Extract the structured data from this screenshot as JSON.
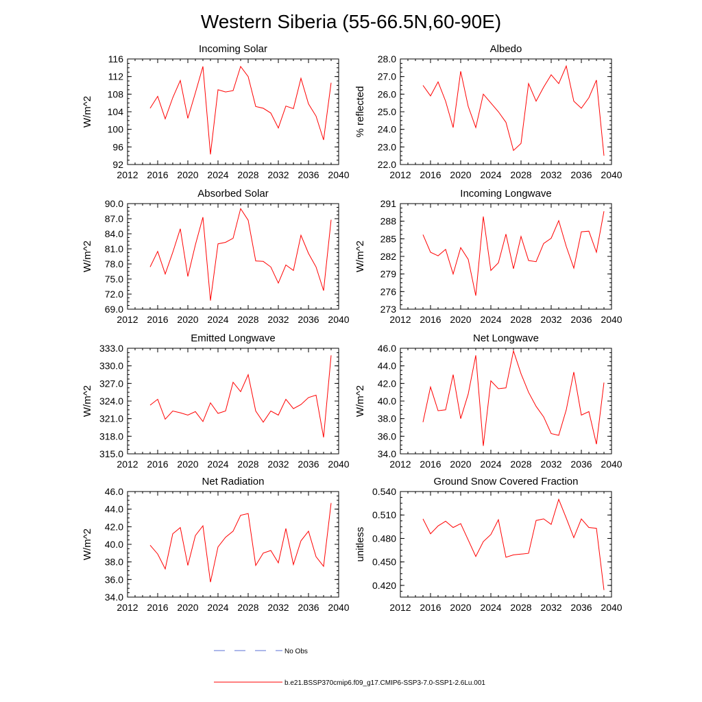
{
  "figure": {
    "title": "Western Siberia (55-66.5N,60-90E)",
    "legend": [
      {
        "label": "No Obs",
        "color": "#5a6fd6",
        "style": "dashed"
      },
      {
        "label": "b.e21.BSSP370cmip6.f09_g17.CMIP6-SSP3-7.0-SSP1-2.6Lu.001",
        "color": "#ff0000",
        "style": "solid"
      }
    ]
  },
  "chart_data": [
    {
      "type": "line",
      "title": "Incoming Solar",
      "xlabel": "",
      "ylabel": "W/m^2",
      "xlim": [
        2012,
        2040
      ],
      "xticks": [
        "2012",
        "2016",
        "2020",
        "2024",
        "2028",
        "2032",
        "2036",
        "2040"
      ],
      "ylim": [
        92,
        116
      ],
      "yticks": [
        "92",
        "96",
        "100",
        "104",
        "108",
        "112",
        "116"
      ],
      "x": [
        2015,
        2016,
        2017,
        2018,
        2019,
        2020,
        2021,
        2022,
        2023,
        2024,
        2025,
        2026,
        2027,
        2028,
        2029,
        2030,
        2031,
        2032,
        2033,
        2034,
        2035,
        2036,
        2037,
        2038,
        2039
      ],
      "series": [
        {
          "color": "#ff0000",
          "values": [
            104.8,
            107.5,
            102.4,
            107.2,
            111.1,
            102.5,
            108.3,
            114.3,
            94.3,
            109.0,
            108.5,
            108.8,
            114.3,
            112.0,
            105.2,
            104.8,
            103.7,
            100.3,
            105.3,
            104.7,
            111.6,
            105.8,
            103.0,
            97.6,
            110.6
          ]
        }
      ]
    },
    {
      "type": "line",
      "title": "Albedo",
      "xlabel": "",
      "ylabel": "% reflected",
      "xlim": [
        2012,
        2040
      ],
      "xticks": [
        "2012",
        "2016",
        "2020",
        "2024",
        "2028",
        "2032",
        "2036",
        "2040"
      ],
      "ylim": [
        22.0,
        28.0
      ],
      "yticks": [
        "22.0",
        "23.0",
        "24.0",
        "25.0",
        "26.0",
        "27.0",
        "28.0"
      ],
      "x": [
        2015,
        2016,
        2017,
        2018,
        2019,
        2020,
        2021,
        2022,
        2023,
        2024,
        2025,
        2026,
        2027,
        2028,
        2029,
        2030,
        2031,
        2032,
        2033,
        2034,
        2035,
        2036,
        2037,
        2038,
        2039
      ],
      "series": [
        {
          "color": "#ff0000",
          "values": [
            26.5,
            25.9,
            26.7,
            25.6,
            24.1,
            27.3,
            25.3,
            24.1,
            26.0,
            25.5,
            25.0,
            24.4,
            22.8,
            23.2,
            26.6,
            25.6,
            26.4,
            27.1,
            26.6,
            27.6,
            25.6,
            25.2,
            25.8,
            26.8,
            22.5
          ]
        }
      ]
    },
    {
      "type": "line",
      "title": "Absorbed Solar",
      "xlabel": "",
      "ylabel": "W/m^2",
      "xlim": [
        2012,
        2040
      ],
      "xticks": [
        "2012",
        "2016",
        "2020",
        "2024",
        "2028",
        "2032",
        "2036",
        "2040"
      ],
      "ylim": [
        69.0,
        90.0
      ],
      "yticks": [
        "69.0",
        "72.0",
        "75.0",
        "78.0",
        "81.0",
        "84.0",
        "87.0",
        "90.0"
      ],
      "x": [
        2015,
        2016,
        2017,
        2018,
        2019,
        2020,
        2021,
        2022,
        2023,
        2024,
        2025,
        2026,
        2027,
        2028,
        2029,
        2030,
        2031,
        2032,
        2033,
        2034,
        2035,
        2036,
        2037,
        2038,
        2039
      ],
      "series": [
        {
          "color": "#ff0000",
          "values": [
            77.4,
            80.5,
            76.0,
            80.3,
            85.0,
            75.5,
            81.8,
            87.3,
            70.7,
            82.0,
            82.3,
            83.1,
            89.0,
            86.7,
            78.6,
            78.5,
            77.4,
            74.2,
            77.8,
            76.7,
            83.7,
            80.1,
            77.4,
            72.7,
            86.8
          ]
        }
      ]
    },
    {
      "type": "line",
      "title": "Incoming Longwave",
      "xlabel": "",
      "ylabel": "W/m^2",
      "xlim": [
        2012,
        2040
      ],
      "xticks": [
        "2012",
        "2016",
        "2020",
        "2024",
        "2028",
        "2032",
        "2036",
        "2040"
      ],
      "ylim": [
        273,
        291
      ],
      "yticks": [
        "273",
        "276",
        "279",
        "282",
        "285",
        "288",
        "291"
      ],
      "x": [
        2015,
        2016,
        2017,
        2018,
        2019,
        2020,
        2021,
        2022,
        2023,
        2024,
        2025,
        2026,
        2027,
        2028,
        2029,
        2030,
        2031,
        2032,
        2033,
        2034,
        2035,
        2036,
        2037,
        2038,
        2039
      ],
      "series": [
        {
          "color": "#ff0000",
          "values": [
            285.7,
            282.7,
            282.1,
            283.2,
            279.0,
            283.5,
            281.5,
            275.3,
            288.8,
            279.6,
            280.9,
            285.8,
            279.9,
            285.4,
            281.3,
            281.1,
            284.2,
            285.1,
            288.1,
            283.7,
            280.0,
            286.2,
            286.3,
            282.7,
            289.7
          ]
        }
      ]
    },
    {
      "type": "line",
      "title": "Emitted Longwave",
      "xlabel": "",
      "ylabel": "W/m^2",
      "xlim": [
        2012,
        2040
      ],
      "xticks": [
        "2012",
        "2016",
        "2020",
        "2024",
        "2028",
        "2032",
        "2036",
        "2040"
      ],
      "ylim": [
        315.0,
        333.0
      ],
      "yticks": [
        "315.0",
        "318.0",
        "321.0",
        "324.0",
        "327.0",
        "330.0",
        "333.0"
      ],
      "x": [
        2015,
        2016,
        2017,
        2018,
        2019,
        2020,
        2021,
        2022,
        2023,
        2024,
        2025,
        2026,
        2027,
        2028,
        2029,
        2030,
        2031,
        2032,
        2033,
        2034,
        2035,
        2036,
        2037,
        2038,
        2039
      ],
      "series": [
        {
          "color": "#ff0000",
          "values": [
            323.3,
            324.3,
            320.9,
            322.3,
            322.0,
            321.6,
            322.2,
            320.5,
            323.7,
            321.9,
            322.3,
            327.2,
            325.6,
            328.5,
            322.3,
            320.4,
            322.3,
            321.6,
            324.3,
            322.7,
            323.4,
            324.6,
            325.0,
            317.8,
            331.8
          ]
        }
      ]
    },
    {
      "type": "line",
      "title": "Net Longwave",
      "xlabel": "",
      "ylabel": "W/m^2",
      "xlim": [
        2012,
        2040
      ],
      "xticks": [
        "2012",
        "2016",
        "2020",
        "2024",
        "2028",
        "2032",
        "2036",
        "2040"
      ],
      "ylim": [
        34.0,
        46.0
      ],
      "yticks": [
        "34.0",
        "36.0",
        "38.0",
        "40.0",
        "42.0",
        "44.0",
        "46.0"
      ],
      "x": [
        2015,
        2016,
        2017,
        2018,
        2019,
        2020,
        2021,
        2022,
        2023,
        2024,
        2025,
        2026,
        2027,
        2028,
        2029,
        2030,
        2031,
        2032,
        2033,
        2034,
        2035,
        2036,
        2037,
        2038,
        2039
      ],
      "series": [
        {
          "color": "#ff0000",
          "values": [
            37.6,
            41.6,
            38.9,
            39.0,
            43.0,
            38.0,
            40.8,
            45.2,
            34.9,
            42.3,
            41.4,
            41.5,
            45.7,
            43.1,
            41.0,
            39.4,
            38.2,
            36.3,
            36.1,
            39.0,
            43.3,
            38.4,
            38.8,
            35.1,
            42.1
          ]
        }
      ]
    },
    {
      "type": "line",
      "title": "Net Radiation",
      "xlabel": "",
      "ylabel": "W/m^2",
      "xlim": [
        2012,
        2040
      ],
      "xticks": [
        "2012",
        "2016",
        "2020",
        "2024",
        "2028",
        "2032",
        "2036",
        "2040"
      ],
      "ylim": [
        34.0,
        46.0
      ],
      "yticks": [
        "34.0",
        "36.0",
        "38.0",
        "40.0",
        "42.0",
        "44.0",
        "46.0"
      ],
      "x": [
        2015,
        2016,
        2017,
        2018,
        2019,
        2020,
        2021,
        2022,
        2023,
        2024,
        2025,
        2026,
        2027,
        2028,
        2029,
        2030,
        2031,
        2032,
        2033,
        2034,
        2035,
        2036,
        2037,
        2038,
        2039
      ],
      "series": [
        {
          "color": "#ff0000",
          "values": [
            39.9,
            38.9,
            37.2,
            41.2,
            41.9,
            37.6,
            41.0,
            42.1,
            35.7,
            39.7,
            40.8,
            41.5,
            43.3,
            43.5,
            37.6,
            39.0,
            39.3,
            37.9,
            41.8,
            37.7,
            40.4,
            41.5,
            38.6,
            37.5,
            44.7
          ]
        }
      ]
    },
    {
      "type": "line",
      "title": "Ground Snow Covered Fraction",
      "xlabel": "",
      "ylabel": "unitless",
      "xlim": [
        2012,
        2040
      ],
      "xticks": [
        "2012",
        "2016",
        "2020",
        "2024",
        "2028",
        "2032",
        "2036",
        "2040"
      ],
      "ylim": [
        0.405,
        0.54
      ],
      "yticks": [
        "0.420",
        "0.450",
        "0.480",
        "0.510",
        "0.540"
      ],
      "x": [
        2015,
        2016,
        2017,
        2018,
        2019,
        2020,
        2021,
        2022,
        2023,
        2024,
        2025,
        2026,
        2027,
        2028,
        2029,
        2030,
        2031,
        2032,
        2033,
        2034,
        2035,
        2036,
        2037,
        2038,
        2039
      ],
      "series": [
        {
          "color": "#ff0000",
          "values": [
            0.505,
            0.486,
            0.496,
            0.502,
            0.494,
            0.499,
            0.478,
            0.457,
            0.476,
            0.485,
            0.504,
            0.456,
            0.459,
            0.46,
            0.461,
            0.503,
            0.505,
            0.498,
            0.53,
            0.506,
            0.481,
            0.505,
            0.494,
            0.493,
            0.414
          ]
        }
      ]
    }
  ]
}
